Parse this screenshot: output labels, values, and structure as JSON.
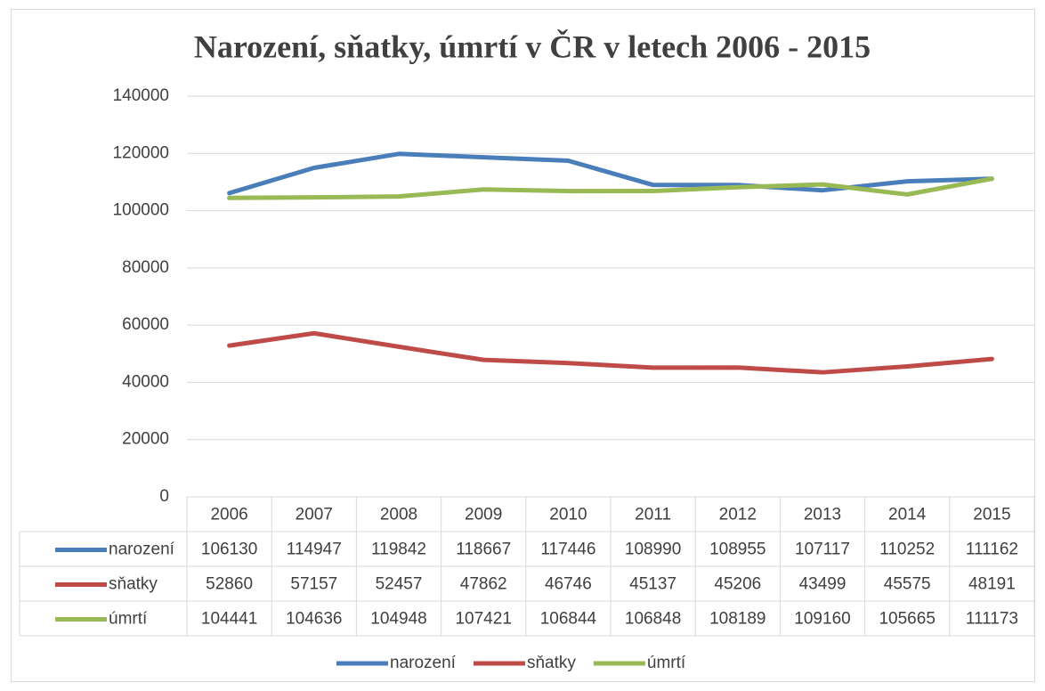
{
  "chart_data": {
    "type": "line",
    "title": "Narození, sňatky, úmrtí v ČR v letech 2006 - 2015",
    "categories": [
      "2006",
      "2007",
      "2008",
      "2009",
      "2010",
      "2011",
      "2012",
      "2013",
      "2014",
      "2015"
    ],
    "series": [
      {
        "name": "narození",
        "color": "#4a7ebb",
        "values": [
          106130,
          114947,
          119842,
          118667,
          117446,
          108990,
          108955,
          107117,
          110252,
          111162
        ]
      },
      {
        "name": "sňatky",
        "color": "#be4b48",
        "values": [
          52860,
          57157,
          52457,
          47862,
          46746,
          45137,
          45206,
          43499,
          45575,
          48191
        ]
      },
      {
        "name": "úmrtí",
        "color": "#98b954",
        "values": [
          104441,
          104636,
          104948,
          107421,
          106844,
          106848,
          108189,
          109160,
          105665,
          111173
        ]
      }
    ],
    "ylim": [
      0,
      140000
    ],
    "yticks": [
      0,
      20000,
      40000,
      60000,
      80000,
      100000,
      120000,
      140000
    ],
    "grid": true,
    "legend": "bottom"
  }
}
